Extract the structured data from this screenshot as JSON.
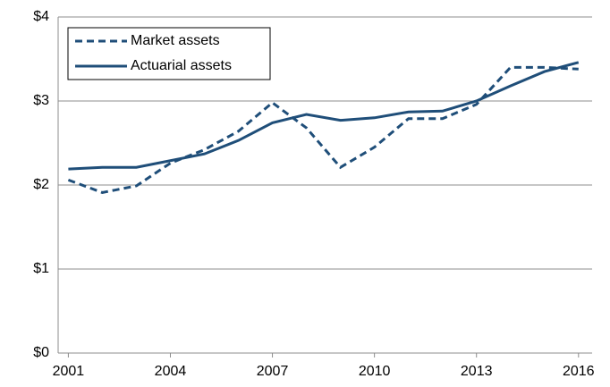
{
  "chart_data": {
    "type": "line",
    "x": [
      2001,
      2002,
      2003,
      2004,
      2005,
      2006,
      2007,
      2008,
      2009,
      2010,
      2011,
      2012,
      2013,
      2014,
      2015,
      2016
    ],
    "series": [
      {
        "name": "Market assets",
        "color": "#1f4e79",
        "dash": true,
        "values": [
          2.06,
          1.91,
          1.99,
          2.26,
          2.42,
          2.64,
          2.98,
          2.68,
          2.21,
          2.45,
          2.79,
          2.79,
          2.96,
          3.4,
          3.4,
          3.38
        ]
      },
      {
        "name": "Actuarial assets",
        "color": "#1f4e79",
        "dash": false,
        "values": [
          2.19,
          2.21,
          2.21,
          2.29,
          2.37,
          2.53,
          2.74,
          2.84,
          2.77,
          2.8,
          2.87,
          2.88,
          3.0,
          3.18,
          3.35,
          3.46
        ]
      }
    ],
    "xlim": [
      2000.7,
      2016.4
    ],
    "xticks": [
      2001,
      2004,
      2007,
      2010,
      2013,
      2016
    ],
    "ylim": [
      0,
      4
    ],
    "yticks": [
      {
        "value": 0,
        "label": "$0"
      },
      {
        "value": 1,
        "label": "$1"
      },
      {
        "value": 2,
        "label": "$2"
      },
      {
        "value": 3,
        "label": "$3"
      },
      {
        "value": 4,
        "label": "$4"
      }
    ],
    "grid": true,
    "legend": "upper-left"
  }
}
